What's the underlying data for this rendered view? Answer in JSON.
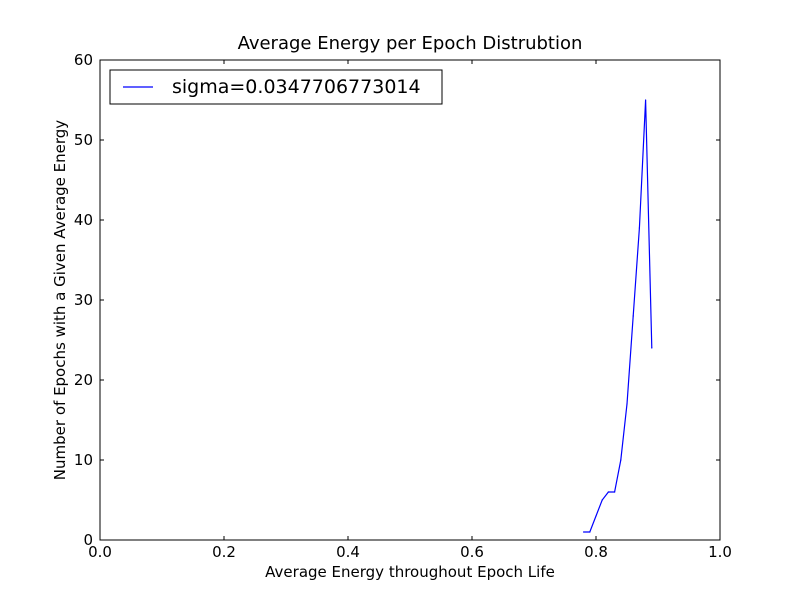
{
  "chart_data": {
    "type": "line",
    "title": "Average Energy per Epoch Distrubtion",
    "xlabel": "Average Energy throughout Epoch Life",
    "ylabel": "Number of Epochs with a Given Average Energy",
    "xlim": [
      0.0,
      1.0
    ],
    "ylim": [
      0,
      60
    ],
    "xticks": [
      "0.0",
      "0.2",
      "0.4",
      "0.6",
      "0.8",
      "1.0"
    ],
    "yticks": [
      "0",
      "10",
      "20",
      "30",
      "40",
      "50",
      "60"
    ],
    "grid": false,
    "legend_position": "upper-left",
    "series": [
      {
        "name": "sigma=0.0347706773014",
        "color": "#0000ff",
        "x": [
          0.78,
          0.79,
          0.8,
          0.81,
          0.82,
          0.83,
          0.84,
          0.85,
          0.86,
          0.87,
          0.88,
          0.89
        ],
        "y": [
          1,
          1,
          3,
          5,
          6,
          6,
          10,
          17,
          28,
          39,
          55,
          24
        ]
      }
    ]
  }
}
